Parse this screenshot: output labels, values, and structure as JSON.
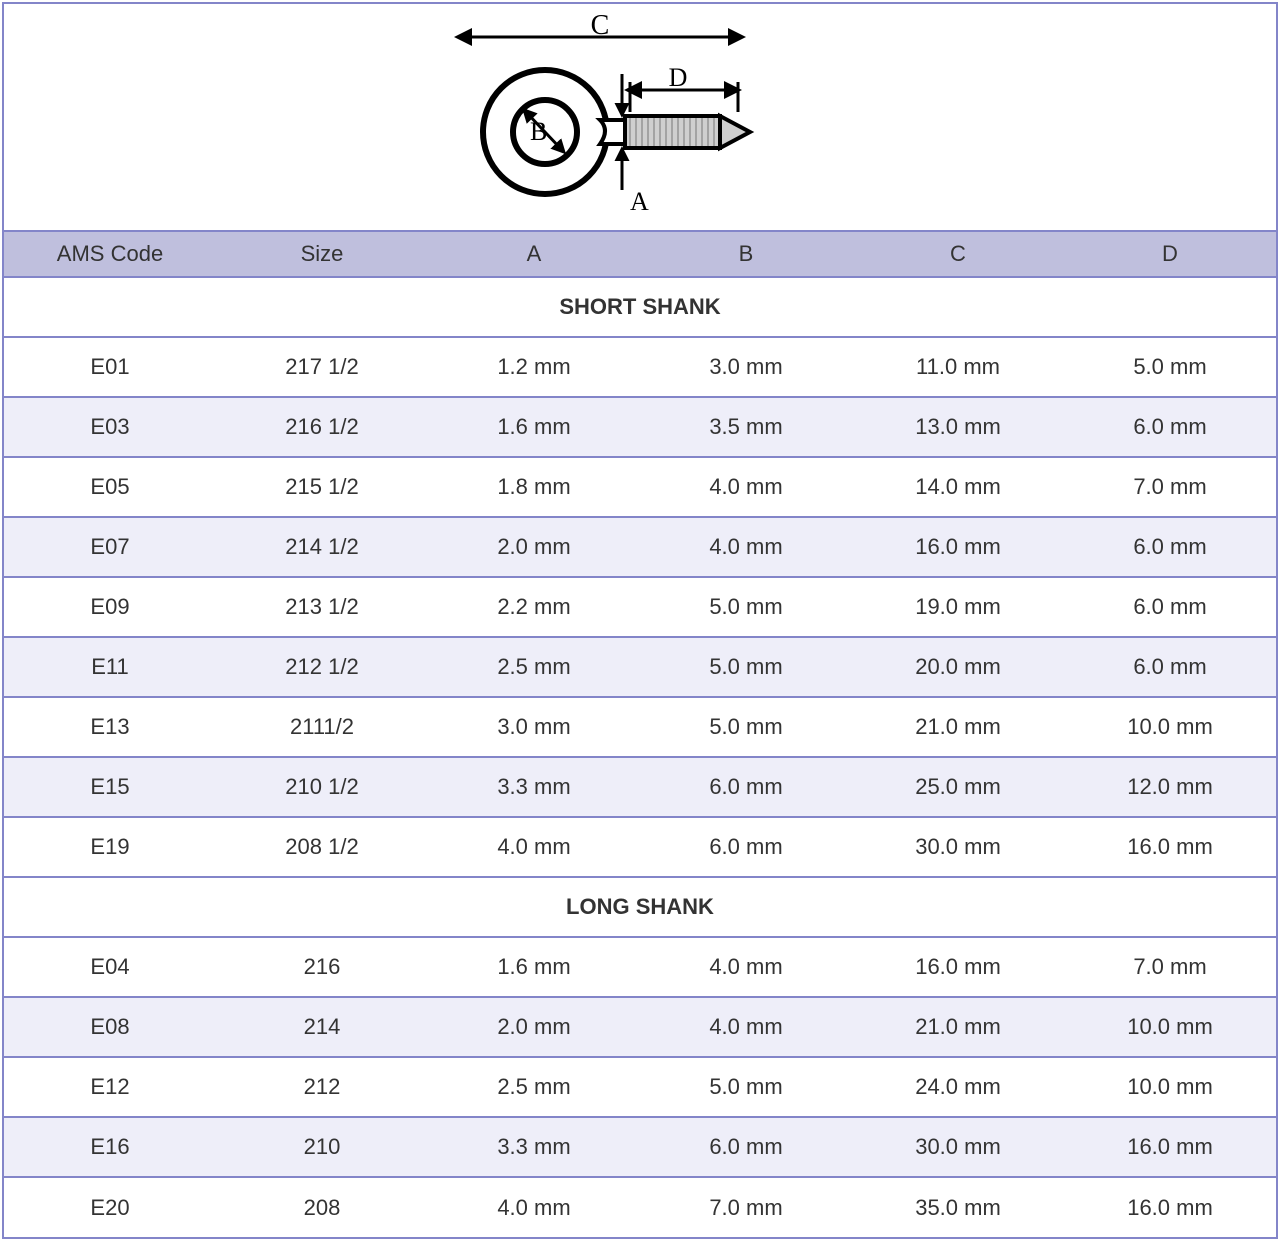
{
  "colors": {
    "border": "#8385c9",
    "header_bg": "#bfbfdd",
    "row_even_bg": "#eeeef9",
    "row_odd_bg": "#ffffff",
    "text": "#333333",
    "diagram_stroke": "#000000"
  },
  "diagram": {
    "labels": {
      "A": "A",
      "B": "B",
      "C": "C",
      "D": "D"
    }
  },
  "columns": [
    "AMS Code",
    "Size",
    "A",
    "B",
    "C",
    "D"
  ],
  "sections": [
    {
      "title": "SHORT SHANK",
      "rows": [
        [
          "E01",
          "217 1/2",
          "1.2 mm",
          "3.0 mm",
          "11.0 mm",
          "5.0 mm"
        ],
        [
          "E03",
          "216 1/2",
          "1.6 mm",
          "3.5 mm",
          "13.0 mm",
          "6.0 mm"
        ],
        [
          "E05",
          "215 1/2",
          "1.8 mm",
          "4.0 mm",
          "14.0 mm",
          "7.0 mm"
        ],
        [
          "E07",
          "214 1/2",
          "2.0 mm",
          "4.0 mm",
          "16.0 mm",
          "6.0 mm"
        ],
        [
          "E09",
          "213 1/2",
          "2.2 mm",
          "5.0 mm",
          "19.0 mm",
          "6.0 mm"
        ],
        [
          "E11",
          "212 1/2",
          "2.5 mm",
          "5.0 mm",
          "20.0 mm",
          "6.0 mm"
        ],
        [
          "E13",
          "2111/2",
          "3.0 mm",
          "5.0 mm",
          "21.0 mm",
          "10.0 mm"
        ],
        [
          "E15",
          "210 1/2",
          "3.3 mm",
          "6.0 mm",
          "25.0 mm",
          "12.0 mm"
        ],
        [
          "E19",
          "208 1/2",
          "4.0 mm",
          "6.0 mm",
          "30.0 mm",
          "16.0 mm"
        ]
      ]
    },
    {
      "title": "LONG SHANK",
      "rows": [
        [
          "E04",
          "216",
          "1.6 mm",
          "4.0 mm",
          "16.0 mm",
          "7.0 mm"
        ],
        [
          "E08",
          "214",
          "2.0 mm",
          "4.0 mm",
          "21.0 mm",
          "10.0 mm"
        ],
        [
          "E12",
          "212",
          "2.5 mm",
          "5.0 mm",
          "24.0 mm",
          "10.0 mm"
        ],
        [
          "E16",
          "210",
          "3.3 mm",
          "6.0 mm",
          "30.0 mm",
          "16.0 mm"
        ],
        [
          "E20",
          "208",
          "4.0 mm",
          "7.0 mm",
          "35.0 mm",
          "16.0 mm"
        ]
      ]
    }
  ]
}
